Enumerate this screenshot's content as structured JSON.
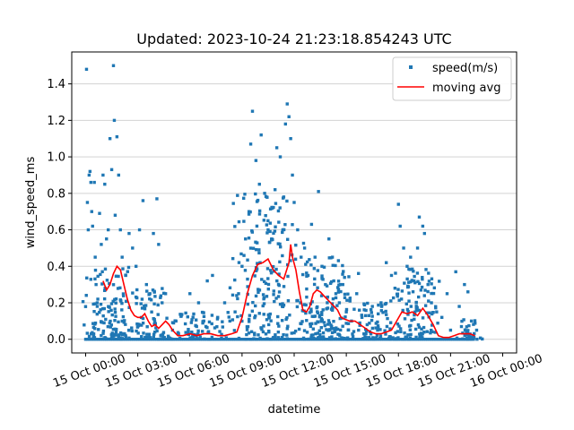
{
  "chart_data": {
    "type": "scatter",
    "title": "Updated: 2023-10-24 21:23:18.854243 UTC",
    "xlabel": "datetime",
    "ylabel": "wind_speed_ms",
    "x_unit": "hours since 15 Oct 00:00",
    "xlim": [
      -0.8,
      24.8
    ],
    "ylim": [
      -0.075,
      1.575
    ],
    "grid": "horizontal",
    "legend_position": "top-right",
    "xticks": [
      {
        "value": 0,
        "label": "15 Oct 00:00"
      },
      {
        "value": 3,
        "label": "15 Oct 03:00"
      },
      {
        "value": 6,
        "label": "15 Oct 06:00"
      },
      {
        "value": 9,
        "label": "15 Oct 09:00"
      },
      {
        "value": 12,
        "label": "15 Oct 12:00"
      },
      {
        "value": 15,
        "label": "15 Oct 15:00"
      },
      {
        "value": 18,
        "label": "15 Oct 18:00"
      },
      {
        "value": 21,
        "label": "15 Oct 21:00"
      },
      {
        "value": 24,
        "label": "16 Oct 00:00"
      }
    ],
    "yticks": [
      {
        "value": 0.0,
        "label": "0.0"
      },
      {
        "value": 0.2,
        "label": "0.2"
      },
      {
        "value": 0.4,
        "label": "0.4"
      },
      {
        "value": 0.6,
        "label": "0.6"
      },
      {
        "value": 0.8,
        "label": "0.8"
      },
      {
        "value": 1.0,
        "label": "1.0"
      },
      {
        "value": 1.2,
        "label": "1.2"
      },
      {
        "value": 1.4,
        "label": "1.4"
      }
    ],
    "series": [
      {
        "name": "speed(m/s)",
        "kind": "scatter",
        "color": "#1f77b4",
        "points": [
          [
            0.05,
            1.48
          ],
          [
            0.1,
            0.75
          ],
          [
            0.15,
            0.6
          ],
          [
            0.2,
            0.9
          ],
          [
            0.25,
            0.92
          ],
          [
            0.3,
            0.86
          ],
          [
            0.35,
            0.7
          ],
          [
            0.4,
            0.62
          ],
          [
            0.5,
            0.86
          ],
          [
            0.55,
            0.45
          ],
          [
            0.6,
            0.3
          ],
          [
            0.7,
            0.22
          ],
          [
            0.8,
            0.69
          ],
          [
            0.9,
            0.52
          ],
          [
            1.0,
            0.9
          ],
          [
            1.1,
            0.85
          ],
          [
            1.2,
            0.55
          ],
          [
            1.3,
            0.6
          ],
          [
            1.4,
            1.1
          ],
          [
            1.5,
            0.93
          ],
          [
            1.6,
            1.5
          ],
          [
            1.65,
            1.2
          ],
          [
            1.7,
            0.68
          ],
          [
            1.8,
            1.11
          ],
          [
            1.9,
            0.9
          ],
          [
            2.0,
            0.6
          ],
          [
            2.1,
            0.45
          ],
          [
            2.3,
            0.35
          ],
          [
            2.5,
            0.58
          ],
          [
            2.7,
            0.5
          ],
          [
            2.9,
            0.4
          ],
          [
            3.1,
            0.6
          ],
          [
            3.3,
            0.76
          ],
          [
            3.5,
            0.3
          ],
          [
            3.7,
            0.25
          ],
          [
            3.9,
            0.58
          ],
          [
            4.1,
            0.77
          ],
          [
            4.2,
            0.52
          ],
          [
            4.4,
            0.2
          ],
          [
            4.6,
            0.25
          ],
          [
            5.0,
            0.05
          ],
          [
            5.2,
            0.1
          ],
          [
            5.5,
            0.13
          ],
          [
            6.0,
            0.25
          ],
          [
            6.2,
            0.02
          ],
          [
            6.5,
            0.2
          ],
          [
            6.8,
            0.1
          ],
          [
            7.0,
            0.32
          ],
          [
            7.3,
            0.35
          ],
          [
            7.6,
            0.12
          ],
          [
            8.0,
            0.2
          ],
          [
            8.3,
            0.1
          ],
          [
            8.6,
            0.15
          ],
          [
            8.8,
            0.25
          ],
          [
            9.0,
            0.4
          ],
          [
            9.2,
            0.55
          ],
          [
            9.4,
            0.7
          ],
          [
            9.5,
            1.07
          ],
          [
            9.6,
            1.25
          ],
          [
            9.8,
            0.98
          ],
          [
            10.0,
            0.85
          ],
          [
            10.1,
            1.12
          ],
          [
            10.3,
            0.8
          ],
          [
            10.5,
            0.6
          ],
          [
            10.7,
            0.55
          ],
          [
            10.9,
            0.82
          ],
          [
            11.0,
            1.05
          ],
          [
            11.2,
            1.0
          ],
          [
            11.4,
            0.78
          ],
          [
            11.5,
            1.18
          ],
          [
            11.6,
            1.29
          ],
          [
            11.7,
            1.22
          ],
          [
            11.8,
            1.1
          ],
          [
            11.9,
            0.9
          ],
          [
            12.0,
            0.75
          ],
          [
            12.2,
            0.6
          ],
          [
            12.4,
            0.45
          ],
          [
            12.6,
            0.5
          ],
          [
            12.8,
            0.35
          ],
          [
            13.0,
            0.63
          ],
          [
            13.2,
            0.45
          ],
          [
            13.4,
            0.81
          ],
          [
            13.6,
            0.4
          ],
          [
            13.8,
            0.3
          ],
          [
            14.0,
            0.55
          ],
          [
            14.2,
            0.45
          ],
          [
            14.4,
            0.25
          ],
          [
            14.6,
            0.2
          ],
          [
            14.8,
            0.3
          ],
          [
            15.0,
            0.15
          ],
          [
            15.3,
            0.1
          ],
          [
            15.6,
            0.25
          ],
          [
            15.9,
            0.12
          ],
          [
            16.2,
            0.08
          ],
          [
            16.5,
            0.18
          ],
          [
            16.8,
            0.05
          ],
          [
            17.0,
            0.2
          ],
          [
            17.3,
            0.42
          ],
          [
            17.6,
            0.35
          ],
          [
            17.8,
            0.28
          ],
          [
            18.0,
            0.74
          ],
          [
            18.1,
            0.62
          ],
          [
            18.3,
            0.5
          ],
          [
            18.5,
            0.4
          ],
          [
            18.7,
            0.45
          ],
          [
            18.9,
            0.32
          ],
          [
            19.1,
            0.5
          ],
          [
            19.2,
            0.67
          ],
          [
            19.4,
            0.62
          ],
          [
            19.5,
            0.58
          ],
          [
            19.7,
            0.3
          ],
          [
            19.9,
            0.2
          ],
          [
            20.2,
            0.15
          ],
          [
            20.5,
            0.12
          ],
          [
            20.8,
            0.25
          ],
          [
            21.0,
            0.05
          ],
          [
            21.3,
            0.37
          ],
          [
            21.5,
            0.18
          ],
          [
            21.8,
            0.3
          ],
          [
            22.0,
            0.26
          ],
          [
            22.2,
            0.1
          ],
          [
            22.5,
            0.05
          ]
        ]
      },
      {
        "name": "moving avg",
        "kind": "line",
        "color": "#ff0000",
        "points": [
          [
            1.0,
            0.32
          ],
          [
            1.2,
            0.27
          ],
          [
            1.4,
            0.3
          ],
          [
            1.6,
            0.36
          ],
          [
            1.8,
            0.4
          ],
          [
            2.0,
            0.38
          ],
          [
            2.2,
            0.3
          ],
          [
            2.4,
            0.22
          ],
          [
            2.6,
            0.16
          ],
          [
            2.8,
            0.13
          ],
          [
            3.0,
            0.12
          ],
          [
            3.2,
            0.12
          ],
          [
            3.4,
            0.14
          ],
          [
            3.6,
            0.1
          ],
          [
            3.8,
            0.07
          ],
          [
            4.0,
            0.08
          ],
          [
            4.2,
            0.06
          ],
          [
            4.4,
            0.08
          ],
          [
            4.6,
            0.1
          ],
          [
            4.8,
            0.08
          ],
          [
            5.0,
            0.05
          ],
          [
            5.3,
            0.02
          ],
          [
            5.6,
            0.02
          ],
          [
            6.0,
            0.03
          ],
          [
            6.4,
            0.02
          ],
          [
            6.8,
            0.03
          ],
          [
            7.2,
            0.03
          ],
          [
            7.6,
            0.02
          ],
          [
            8.0,
            0.02
          ],
          [
            8.4,
            0.03
          ],
          [
            8.7,
            0.04
          ],
          [
            9.0,
            0.12
          ],
          [
            9.3,
            0.25
          ],
          [
            9.6,
            0.35
          ],
          [
            9.9,
            0.41
          ],
          [
            10.2,
            0.42
          ],
          [
            10.5,
            0.44
          ],
          [
            10.8,
            0.38
          ],
          [
            11.1,
            0.35
          ],
          [
            11.4,
            0.33
          ],
          [
            11.7,
            0.42
          ],
          [
            11.8,
            0.52
          ],
          [
            11.9,
            0.45
          ],
          [
            12.1,
            0.38
          ],
          [
            12.3,
            0.26
          ],
          [
            12.5,
            0.16
          ],
          [
            12.7,
            0.15
          ],
          [
            12.9,
            0.18
          ],
          [
            13.1,
            0.25
          ],
          [
            13.3,
            0.27
          ],
          [
            13.5,
            0.26
          ],
          [
            13.7,
            0.24
          ],
          [
            13.9,
            0.22
          ],
          [
            14.1,
            0.2
          ],
          [
            14.3,
            0.18
          ],
          [
            14.5,
            0.16
          ],
          [
            14.7,
            0.12
          ],
          [
            14.9,
            0.11
          ],
          [
            15.2,
            0.1
          ],
          [
            15.5,
            0.1
          ],
          [
            15.8,
            0.08
          ],
          [
            16.1,
            0.06
          ],
          [
            16.4,
            0.04
          ],
          [
            16.7,
            0.03
          ],
          [
            17.0,
            0.03
          ],
          [
            17.3,
            0.04
          ],
          [
            17.6,
            0.05
          ],
          [
            17.9,
            0.1
          ],
          [
            18.2,
            0.15
          ],
          [
            18.5,
            0.14
          ],
          [
            18.8,
            0.15
          ],
          [
            19.1,
            0.13
          ],
          [
            19.4,
            0.17
          ],
          [
            19.7,
            0.13
          ],
          [
            20.0,
            0.08
          ],
          [
            20.3,
            0.02
          ],
          [
            20.6,
            0.01
          ],
          [
            20.9,
            0.01
          ],
          [
            21.2,
            0.02
          ],
          [
            21.5,
            0.03
          ],
          [
            21.8,
            0.03
          ],
          [
            22.1,
            0.03
          ],
          [
            22.4,
            0.02
          ]
        ]
      }
    ],
    "density_bands": [
      {
        "center": 1.5,
        "spread": 1.5,
        "max": 0.4,
        "count": 140
      },
      {
        "center": 3.8,
        "spread": 1.0,
        "max": 0.3,
        "count": 60
      },
      {
        "center": 6.5,
        "spread": 2.0,
        "max": 0.15,
        "count": 70
      },
      {
        "center": 10.4,
        "spread": 1.7,
        "max": 0.8,
        "count": 200
      },
      {
        "center": 13.8,
        "spread": 1.7,
        "max": 0.45,
        "count": 170
      },
      {
        "center": 16.5,
        "spread": 1.2,
        "max": 0.2,
        "count": 70
      },
      {
        "center": 19.0,
        "spread": 1.3,
        "max": 0.4,
        "count": 120
      },
      {
        "center": 22.0,
        "spread": 0.6,
        "max": 0.12,
        "count": 30
      }
    ]
  }
}
